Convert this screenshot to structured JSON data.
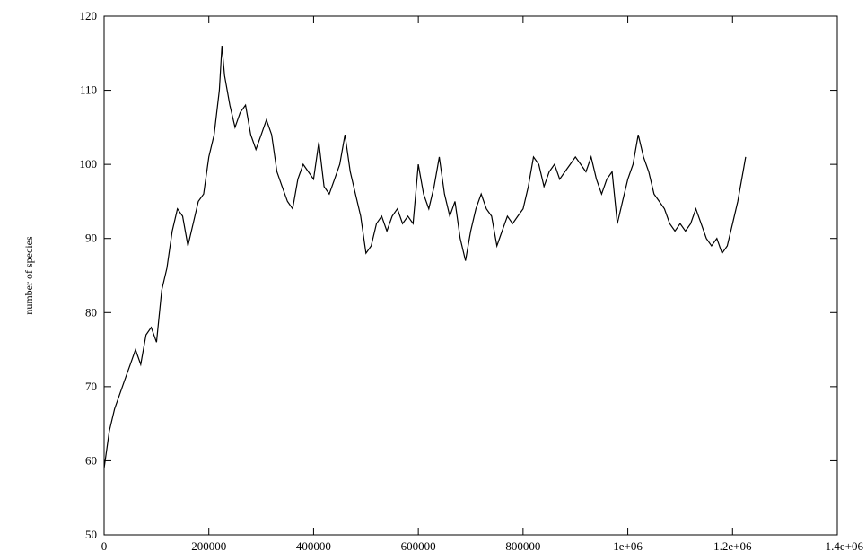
{
  "chart_data": {
    "type": "line",
    "title": "",
    "xlabel": "",
    "ylabel": "number of species",
    "xlim": [
      0,
      1400000
    ],
    "ylim": [
      50,
      120
    ],
    "x_ticks": [
      {
        "value": 0,
        "label": "0"
      },
      {
        "value": 200000,
        "label": "200000"
      },
      {
        "value": 400000,
        "label": "400000"
      },
      {
        "value": 600000,
        "label": "600000"
      },
      {
        "value": 800000,
        "label": "800000"
      },
      {
        "value": 1000000,
        "label": "1e+06"
      },
      {
        "value": 1200000,
        "label": "1.2e+06"
      },
      {
        "value": 1400000,
        "label": "1.4e+06"
      }
    ],
    "y_ticks": [
      {
        "value": 50,
        "label": "50"
      },
      {
        "value": 60,
        "label": "60"
      },
      {
        "value": 70,
        "label": "70"
      },
      {
        "value": 80,
        "label": "80"
      },
      {
        "value": 90,
        "label": "90"
      },
      {
        "value": 100,
        "label": "100"
      },
      {
        "value": 110,
        "label": "110"
      },
      {
        "value": 120,
        "label": "120"
      }
    ],
    "grid": false,
    "legend": "none",
    "line_color": "#000000",
    "series": [
      {
        "x": [
          0,
          10000,
          20000,
          30000,
          40000,
          50000,
          60000,
          70000,
          80000,
          90000,
          100000,
          110000,
          120000,
          130000,
          140000,
          150000,
          160000,
          170000,
          180000,
          190000,
          200000,
          210000,
          220000,
          225000,
          230000,
          240000,
          250000,
          260000,
          270000,
          280000,
          290000,
          300000,
          310000,
          320000,
          330000,
          340000,
          350000,
          360000,
          370000,
          380000,
          390000,
          400000,
          410000,
          420000,
          430000,
          440000,
          450000,
          460000,
          470000,
          480000,
          490000,
          500000,
          510000,
          520000,
          530000,
          540000,
          550000,
          560000,
          570000,
          580000,
          590000,
          600000,
          610000,
          620000,
          630000,
          640000,
          650000,
          660000,
          670000,
          680000,
          690000,
          700000,
          710000,
          720000,
          730000,
          740000,
          750000,
          760000,
          770000,
          780000,
          790000,
          800000,
          810000,
          820000,
          830000,
          840000,
          850000,
          860000,
          870000,
          880000,
          890000,
          900000,
          910000,
          920000,
          930000,
          940000,
          950000,
          960000,
          970000,
          980000,
          990000,
          1000000,
          1010000,
          1020000,
          1030000,
          1040000,
          1050000,
          1060000,
          1070000,
          1080000,
          1090000,
          1100000,
          1110000,
          1120000,
          1130000,
          1140000,
          1150000,
          1160000,
          1170000,
          1180000,
          1190000,
          1200000,
          1210000,
          1220000,
          1225000
        ],
        "y": [
          59,
          64,
          67,
          69,
          71,
          73,
          75,
          73,
          77,
          78,
          76,
          83,
          86,
          91,
          94,
          93,
          89,
          92,
          95,
          96,
          101,
          104,
          110,
          116,
          112,
          108,
          105,
          107,
          108,
          104,
          102,
          104,
          106,
          104,
          99,
          97,
          95,
          94,
          98,
          100,
          99,
          98,
          103,
          97,
          96,
          98,
          100,
          104,
          99,
          96,
          93,
          88,
          89,
          92,
          93,
          91,
          93,
          94,
          92,
          93,
          92,
          100,
          96,
          94,
          97,
          101,
          96,
          93,
          95,
          90,
          87,
          91,
          94,
          96,
          94,
          93,
          89,
          91,
          93,
          92,
          93,
          94,
          97,
          101,
          100,
          97,
          99,
          100,
          98,
          99,
          100,
          101,
          100,
          99,
          101,
          98,
          96,
          98,
          99,
          92,
          95,
          98,
          100,
          104,
          101,
          99,
          96,
          95,
          94,
          92,
          91,
          92,
          91,
          92,
          94,
          92,
          90,
          89,
          90,
          88,
          89,
          92,
          95,
          99,
          101
        ]
      }
    ]
  }
}
